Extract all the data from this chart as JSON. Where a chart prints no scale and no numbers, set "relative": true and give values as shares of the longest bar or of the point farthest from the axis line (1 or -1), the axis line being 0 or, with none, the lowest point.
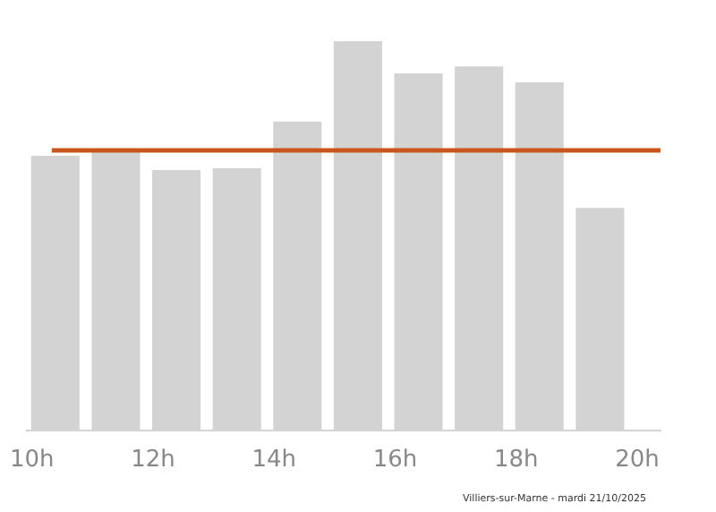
{
  "chart_data": {
    "type": "bar",
    "relative": true,
    "x": [
      10.4,
      11.4,
      12.4,
      13.4,
      14.4,
      15.4,
      16.4,
      17.4,
      18.4,
      19.4
    ],
    "series": [
      {
        "color": "#d3d3d3",
        "values": [
          0.705,
          0.714,
          0.668,
          0.673,
          0.793,
          1,
          0.917,
          0.935,
          0.894,
          0.571
        ]
      }
    ],
    "xlim": [
      9.9,
      20.4
    ],
    "xticks": [
      {
        "value": 10,
        "label": "10h"
      },
      {
        "value": 12,
        "label": "12h"
      },
      {
        "value": 14,
        "label": "14h"
      },
      {
        "value": 16,
        "label": "16h"
      },
      {
        "value": 18,
        "label": "18h"
      },
      {
        "value": 20,
        "label": "20h"
      }
    ],
    "ref_lines": [
      {
        "axis": "y",
        "value": 0.719,
        "color": "#c8561a"
      }
    ],
    "annotations": [
      "Villiers-sur-Marne - mardi 21/10/2025"
    ],
    "grid": false
  }
}
